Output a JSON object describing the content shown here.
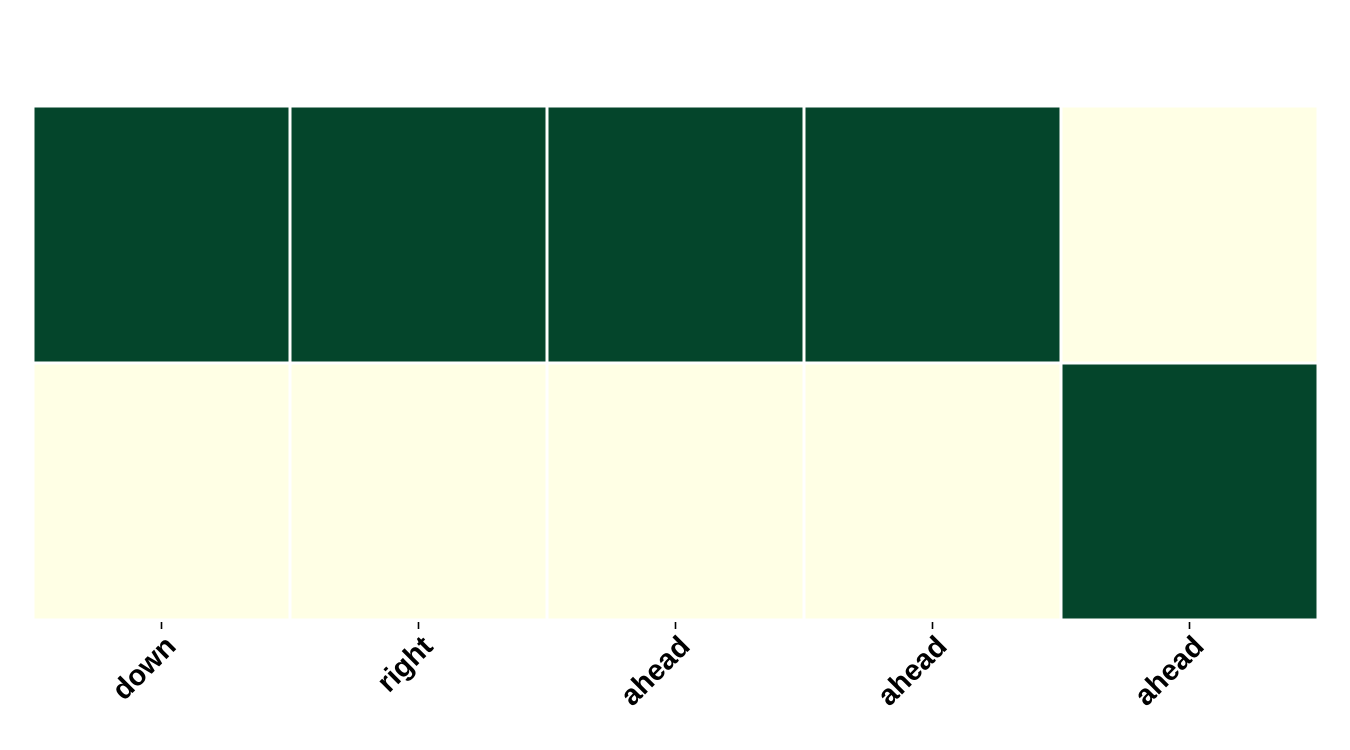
{
  "chart_data": {
    "type": "heatmap",
    "title": "",
    "xlabel": "",
    "ylabel": "",
    "x_categories": [
      "down",
      "right",
      "ahead",
      "ahead",
      "ahead"
    ],
    "y_categories": [],
    "values": [
      [
        1,
        1,
        1,
        1,
        0
      ],
      [
        0,
        0,
        0,
        0,
        1
      ]
    ],
    "value_range": [
      0,
      1
    ],
    "colors": {
      "low": "#ffffe5",
      "high": "#04452b",
      "cell_border": "#ffffff",
      "tick": "#000000"
    },
    "legend": "none",
    "grid": false
  }
}
